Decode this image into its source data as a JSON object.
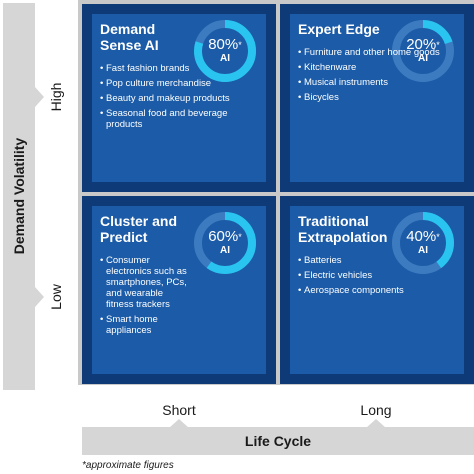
{
  "y_axis": {
    "title": "Demand Volatility",
    "high": "High",
    "low": "Low"
  },
  "x_axis": {
    "title": "Life Cycle",
    "short": "Short",
    "long": "Long"
  },
  "colors": {
    "cell_outer": "#0e3a78",
    "cell_inner": "#1b5ba7",
    "ring_track": "#3d7bc0",
    "ring_fill": "#29c4f0",
    "axis_band": "#d6d6d6"
  },
  "quadrants": [
    {
      "title": "Demand Sense AI",
      "percent": 80,
      "percent_label": "80%",
      "mark": "*",
      "ai_label": "AI",
      "items": [
        "Fast fashion brands",
        "Pop culture merchandise",
        "Beauty and makeup products",
        "Seasonal food and beverage products"
      ]
    },
    {
      "title": "Expert Edge",
      "percent": 20,
      "percent_label": "20%",
      "mark": "*",
      "ai_label": "AI",
      "items": [
        "Furniture and other home goods",
        "Kitchenware",
        "Musical instruments",
        "Bicycles"
      ]
    },
    {
      "title": "Cluster and Predict",
      "percent": 60,
      "percent_label": "60%",
      "mark": "*",
      "ai_label": "AI",
      "items": [
        "Consumer electronics such as smartphones, PCs, and wearable fitness trackers",
        "Smart home appliances"
      ]
    },
    {
      "title": "Traditional Extrapolation",
      "percent": 40,
      "percent_label": "40%",
      "mark": "*",
      "ai_label": "AI",
      "items": [
        "Batteries",
        "Electric vehicles",
        "Aerospace components"
      ]
    }
  ],
  "footnote": "*approximate figures"
}
